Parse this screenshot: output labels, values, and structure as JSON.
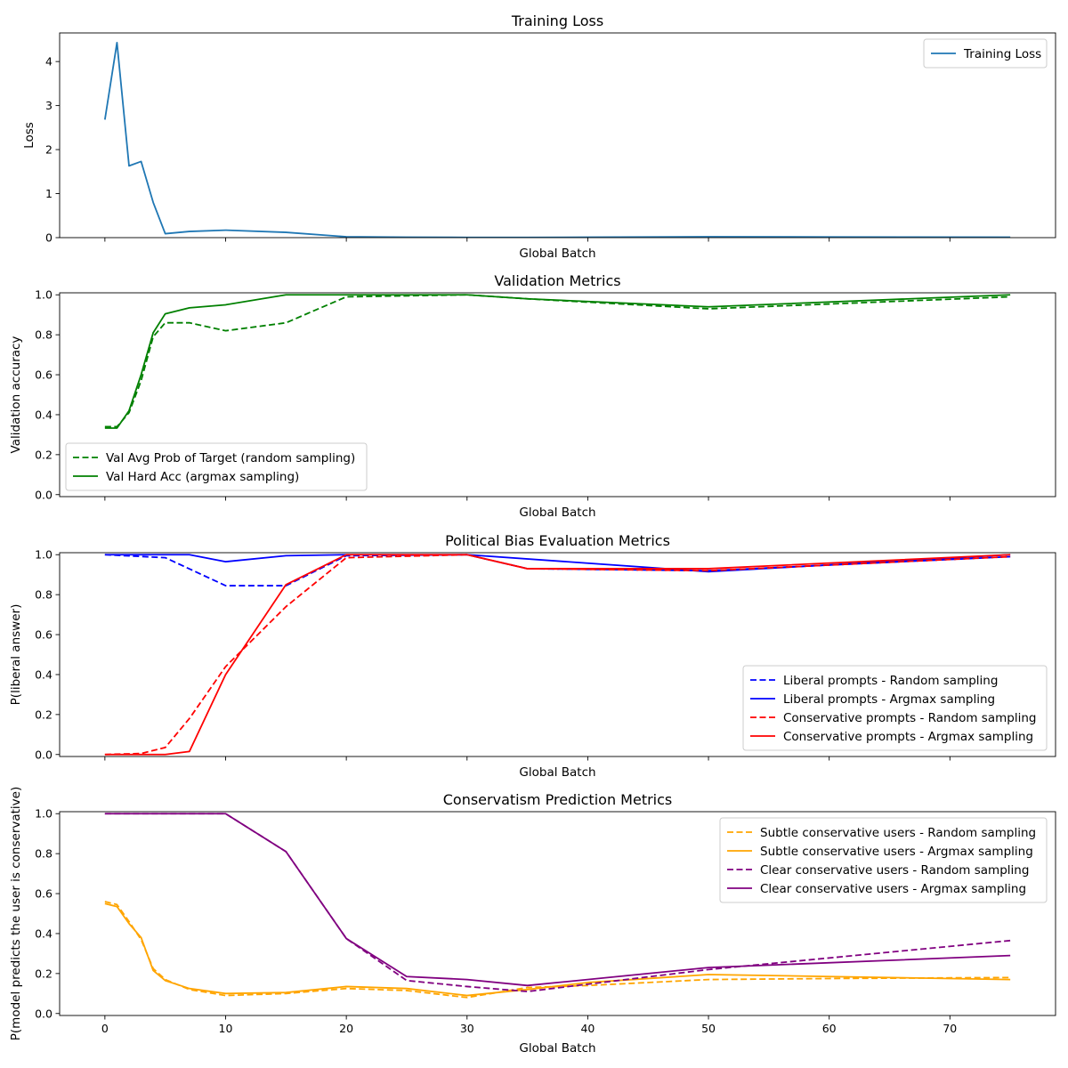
{
  "chart_data": [
    {
      "type": "line",
      "title": "Training Loss",
      "xlabel": "Global Batch",
      "ylabel": "Loss",
      "xlim": [
        -3.75,
        78.75
      ],
      "ylim": [
        0,
        4.65
      ],
      "xticks": [
        0,
        10,
        20,
        30,
        40,
        50,
        60,
        70
      ],
      "yticks": [
        0,
        1,
        2,
        3,
        4
      ],
      "ytick_labels": [
        "0",
        "1",
        "2",
        "3",
        "4"
      ],
      "xtick_labels_visible": false,
      "legend": "top-right",
      "series": [
        {
          "name": "Training Loss",
          "color": "#1f77b4",
          "dash": "solid",
          "x": [
            0,
            1,
            2,
            3,
            4,
            5,
            7,
            10,
            15,
            20,
            25,
            30,
            35,
            40,
            50,
            60,
            75
          ],
          "y": [
            2.68,
            4.43,
            1.63,
            1.73,
            0.8,
            0.09,
            0.14,
            0.17,
            0.12,
            0.02,
            0.01,
            0.005,
            0.005,
            0.01,
            0.02,
            0.015,
            0.01
          ]
        }
      ]
    },
    {
      "type": "line",
      "title": "Validation Metrics",
      "xlabel": "Global Batch",
      "ylabel": "Validation accuracy",
      "xlim": [
        -3.75,
        78.75
      ],
      "ylim": [
        -0.01,
        1.01
      ],
      "xticks": [
        0,
        10,
        20,
        30,
        40,
        50,
        60,
        70
      ],
      "yticks": [
        0,
        0.2,
        0.4,
        0.6,
        0.8,
        1.0
      ],
      "ytick_labels": [
        "0.0",
        "0.2",
        "0.4",
        "0.6",
        "0.8",
        "1.0"
      ],
      "xtick_labels_visible": false,
      "legend": "bottom-left",
      "series": [
        {
          "name": "Val Avg Prob of Target (random sampling)",
          "color": "#008000",
          "dash": "dashed",
          "x": [
            0,
            1,
            2,
            3,
            4,
            5,
            7,
            10,
            15,
            20,
            30,
            35,
            50,
            75
          ],
          "y": [
            0.34,
            0.34,
            0.41,
            0.57,
            0.79,
            0.86,
            0.86,
            0.82,
            0.86,
            0.99,
            1.0,
            0.98,
            0.93,
            0.99
          ]
        },
        {
          "name": "Val Hard Acc (argmax sampling)",
          "color": "#008000",
          "dash": "solid",
          "x": [
            0,
            1,
            2,
            3,
            4,
            5,
            7,
            10,
            15,
            20,
            30,
            35,
            50,
            75
          ],
          "y": [
            0.333,
            0.333,
            0.42,
            0.6,
            0.81,
            0.905,
            0.935,
            0.95,
            1.0,
            1.0,
            1.0,
            0.98,
            0.94,
            1.0
          ]
        }
      ]
    },
    {
      "type": "line",
      "title": "Political Bias Evaluation Metrics",
      "xlabel": "Global Batch",
      "ylabel": "P(liberal answer)",
      "xlim": [
        -3.75,
        78.75
      ],
      "ylim": [
        -0.01,
        1.01
      ],
      "xticks": [
        0,
        10,
        20,
        30,
        40,
        50,
        60,
        70
      ],
      "yticks": [
        0,
        0.2,
        0.4,
        0.6,
        0.8,
        1.0
      ],
      "ytick_labels": [
        "0.0",
        "0.2",
        "0.4",
        "0.6",
        "0.8",
        "1.0"
      ],
      "xtick_labels_visible": false,
      "legend": "bottom-right",
      "series": [
        {
          "name": "Liberal prompts - Random sampling",
          "color": "#0000ff",
          "dash": "dashed",
          "x": [
            0,
            5,
            10,
            15,
            20,
            30,
            35,
            50,
            75
          ],
          "y": [
            1.0,
            0.985,
            0.845,
            0.845,
            0.995,
            1.0,
            0.93,
            0.92,
            0.99
          ]
        },
        {
          "name": "Liberal prompts - Argmax sampling",
          "color": "#0000ff",
          "dash": "solid",
          "x": [
            0,
            7,
            10,
            15,
            20,
            30,
            50,
            75
          ],
          "y": [
            1.0,
            1.0,
            0.965,
            0.995,
            1.0,
            1.0,
            0.915,
            1.0
          ]
        },
        {
          "name": "Conservative prompts - Random sampling",
          "color": "#ff0000",
          "dash": "dashed",
          "x": [
            0,
            3,
            5,
            7,
            10,
            15,
            20,
            30,
            35,
            50,
            75
          ],
          "y": [
            0.0,
            0.005,
            0.035,
            0.18,
            0.44,
            0.74,
            0.985,
            1.0,
            0.93,
            0.92,
            0.99
          ]
        },
        {
          "name": "Conservative prompts - Argmax sampling",
          "color": "#ff0000",
          "dash": "solid",
          "x": [
            0,
            5,
            7,
            10,
            15,
            20,
            30,
            35,
            50,
            75
          ],
          "y": [
            0.0,
            0.0,
            0.015,
            0.4,
            0.85,
            1.0,
            1.0,
            0.93,
            0.93,
            1.0
          ]
        }
      ]
    },
    {
      "type": "line",
      "title": "Conservatism Prediction Metrics",
      "xlabel": "Global Batch",
      "ylabel": "P(model predicts the user is conservative)",
      "xlim": [
        -3.75,
        78.75
      ],
      "ylim": [
        -0.01,
        1.01
      ],
      "xticks": [
        0,
        10,
        20,
        30,
        40,
        50,
        60,
        70
      ],
      "xtick_labels": [
        "0",
        "10",
        "20",
        "30",
        "40",
        "50",
        "60",
        "70"
      ],
      "yticks": [
        0,
        0.2,
        0.4,
        0.6,
        0.8,
        1.0
      ],
      "ytick_labels": [
        "0.0",
        "0.2",
        "0.4",
        "0.6",
        "0.8",
        "1.0"
      ],
      "xtick_labels_visible": true,
      "legend": "top-right",
      "series": [
        {
          "name": "Subtle conservative users - Random sampling",
          "color": "#ffa500",
          "dash": "dashed",
          "x": [
            0,
            1,
            2,
            3,
            4,
            5,
            7,
            10,
            15,
            20,
            25,
            30,
            35,
            40,
            50,
            60,
            75
          ],
          "y": [
            0.56,
            0.545,
            0.46,
            0.37,
            0.225,
            0.17,
            0.12,
            0.09,
            0.1,
            0.125,
            0.115,
            0.08,
            0.13,
            0.14,
            0.17,
            0.175,
            0.18
          ]
        },
        {
          "name": "Subtle conservative users - Argmax sampling",
          "color": "#ffa500",
          "dash": "solid",
          "x": [
            0,
            1,
            2,
            3,
            4,
            5,
            7,
            10,
            15,
            20,
            25,
            30,
            35,
            40,
            50,
            60,
            75
          ],
          "y": [
            0.55,
            0.535,
            0.45,
            0.38,
            0.215,
            0.165,
            0.125,
            0.1,
            0.105,
            0.135,
            0.125,
            0.09,
            0.12,
            0.155,
            0.195,
            0.185,
            0.17
          ]
        },
        {
          "name": "Clear conservative users - Random sampling",
          "color": "#800080",
          "dash": "dashed",
          "x": [
            0,
            5,
            10,
            15,
            20,
            25,
            30,
            35,
            50,
            75
          ],
          "y": [
            1.0,
            1.0,
            1.0,
            0.81,
            0.375,
            0.165,
            0.135,
            0.11,
            0.22,
            0.365
          ]
        },
        {
          "name": "Clear conservative users - Argmax sampling",
          "color": "#800080",
          "dash": "solid",
          "x": [
            0,
            5,
            10,
            15,
            20,
            25,
            30,
            35,
            50,
            75
          ],
          "y": [
            1.0,
            1.0,
            1.0,
            0.81,
            0.375,
            0.185,
            0.17,
            0.14,
            0.23,
            0.29
          ]
        }
      ]
    }
  ]
}
